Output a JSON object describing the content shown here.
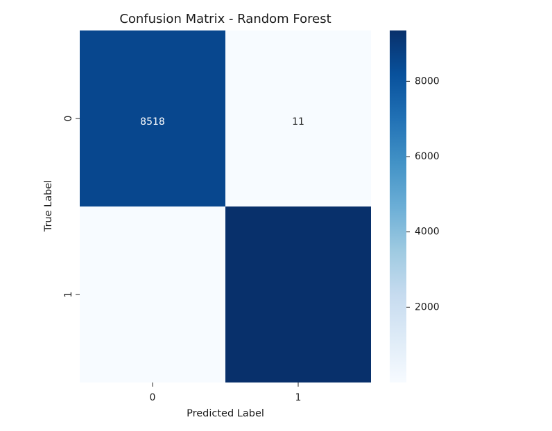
{
  "chart_data": {
    "type": "heatmap",
    "title": "Confusion Matrix - Random Forest",
    "xlabel": "Predicted Label",
    "ylabel": "True Label",
    "x_categories": [
      "0",
      "1"
    ],
    "y_categories": [
      "0",
      "1"
    ],
    "values": [
      [
        8518,
        11
      ],
      [
        0,
        9350
      ]
    ],
    "cell_labels": [
      [
        "8518",
        "11"
      ],
      [
        "",
        ""
      ]
    ],
    "colormap": "Blues",
    "colors": {
      "low": "#f7fbff",
      "mid": "#6baed6",
      "high": "#08306b"
    },
    "colorbar": {
      "range": [
        0,
        9350
      ],
      "ticks": [
        2000,
        4000,
        6000,
        8000
      ],
      "tick_labels": [
        "2000",
        "4000",
        "6000",
        "8000"
      ]
    },
    "grid": false,
    "legend": "colorbar-right"
  }
}
